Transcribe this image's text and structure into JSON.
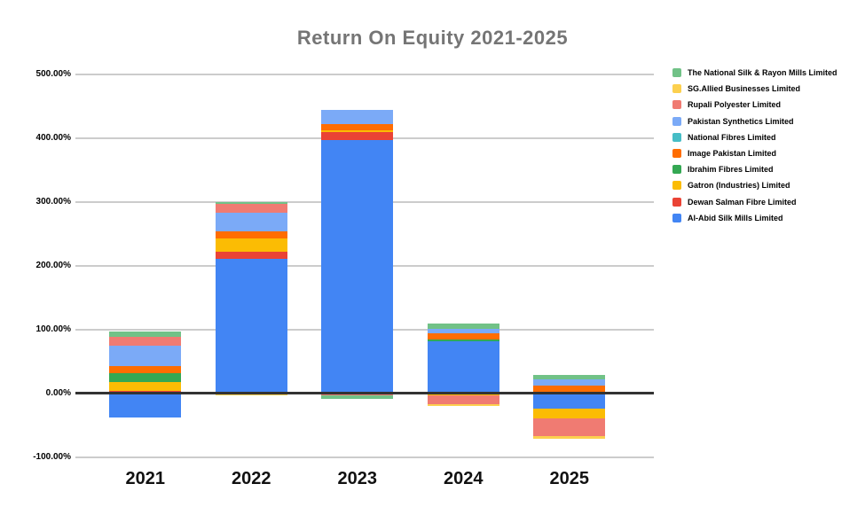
{
  "title": "Return On Equity 2021-2025",
  "colors": {
    "background": "#ffffff",
    "grid": "#cccccc",
    "zero_line": "#333333",
    "title_text": "#757575",
    "axis_text": "#000000"
  },
  "chart_data": {
    "type": "bar",
    "stacked": true,
    "title": "Return On Equity 2021-2025",
    "xlabel": "",
    "ylabel": "",
    "unit": "%",
    "ylim": [
      -100,
      500
    ],
    "grid": true,
    "legend_position": "right",
    "categories": [
      "2021",
      "2022",
      "2023",
      "2024",
      "2025"
    ],
    "y_ticks": [
      {
        "label": "500.00%",
        "value": 500
      },
      {
        "label": "400.00%",
        "value": 400
      },
      {
        "label": "300.00%",
        "value": 300
      },
      {
        "label": "200.00%",
        "value": 200
      },
      {
        "label": "100.00%",
        "value": 100
      },
      {
        "label": "0.00%",
        "value": 0
      },
      {
        "label": "-100.00%",
        "value": -100
      }
    ],
    "series": [
      {
        "name": "Al-Abid Silk Mills Limited",
        "color": "#4285f4",
        "values": [
          -38,
          210,
          397,
          81,
          -24
        ]
      },
      {
        "name": "Dewan Salman Fibre Limited",
        "color": "#ea4335",
        "values": [
          3,
          11,
          12,
          0,
          0
        ]
      },
      {
        "name": "Gatron (Industries) Limited",
        "color": "#fbbc04",
        "values": [
          14,
          21,
          3,
          -4,
          -16
        ]
      },
      {
        "name": "Ibrahim Fibres Limited",
        "color": "#34a853",
        "values": [
          14,
          0,
          0,
          3,
          0
        ]
      },
      {
        "name": "Image Pakistan Limited",
        "color": "#ff6d01",
        "values": [
          11,
          12,
          10,
          10,
          12
        ]
      },
      {
        "name": "National Fibres Limited",
        "color": "#46bdc6",
        "values": [
          0,
          0,
          0,
          0,
          0
        ]
      },
      {
        "name": "Pakistan Synthetics Limited",
        "color": "#7baaf7",
        "values": [
          32,
          28,
          22,
          7,
          10
        ]
      },
      {
        "name": "Rupali Polyester Limited",
        "color": "#f07b72",
        "values": [
          14,
          14,
          -4,
          -13,
          -28
        ]
      },
      {
        "name": "SG.Allied Businesses Limited",
        "color": "#fcd04f",
        "values": [
          0,
          -4,
          0,
          -3,
          -4
        ]
      },
      {
        "name": "The National Silk & Rayon Mills Limited",
        "color": "#71c287",
        "values": [
          8,
          3,
          -5,
          8,
          6
        ]
      }
    ]
  }
}
